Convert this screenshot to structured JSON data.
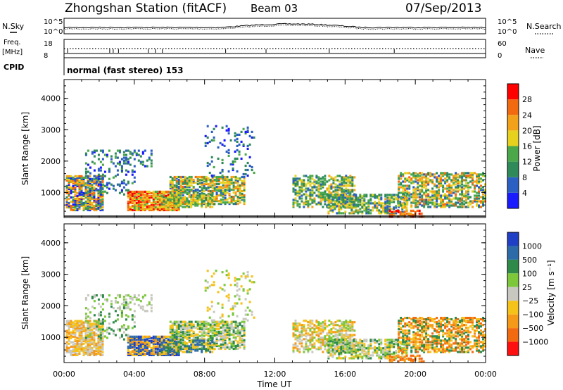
{
  "header": {
    "station": "Zhongshan Station (fitACF)",
    "beam": "Beam 03",
    "date": "07/Sep/2013"
  },
  "noise_panel": {
    "left_label": "N.Sky",
    "right_label": "N.Search",
    "left_ticks": [
      "10^5",
      "10^0"
    ],
    "right_ticks": [
      "10^5",
      "10^0"
    ]
  },
  "freq_panel": {
    "left_label_1": "Freq.",
    "left_label_2": "[MHz]",
    "right_label": "Nave",
    "left_ticks": [
      "18",
      "8"
    ],
    "right_ticks": [
      "60",
      "0"
    ]
  },
  "cpid": {
    "label": "CPID",
    "text": "normal (fast stereo) 153"
  },
  "chart_data": [
    {
      "type": "heatmap",
      "title": "Power",
      "ylabel": "Slant Range [km]",
      "xlabel": "",
      "x_ticks": [
        "00:00",
        "04:00",
        "08:00",
        "12:00",
        "16:00",
        "20:00",
        "00:00"
      ],
      "y_ticks": [
        1000,
        2000,
        3000,
        4000
      ],
      "ylim": [
        200,
        4600
      ],
      "colorbar": {
        "label": "Power [dB]",
        "ticks": [
          "4",
          "8",
          "12",
          "16",
          "20",
          "24",
          "28"
        ],
        "colors": [
          "#1a1aff",
          "#2b5fc2",
          "#2f8a5a",
          "#4aa84a",
          "#e6d21e",
          "#f2a21a",
          "#f26a10",
          "#ff0000"
        ]
      },
      "data_note": "Echo occurrence: 00:00-10:30 between 400-2400 km (strongest 04:00-06:30 near 500-900 km), scattered echoes to 3100 km at 08:00-10:30, 13:00-24:00 between 300-1600 km"
    },
    {
      "type": "heatmap",
      "title": "Velocity",
      "ylabel": "Slant Range [km]",
      "xlabel": "Time UT",
      "x_ticks": [
        "00:00",
        "04:00",
        "08:00",
        "12:00",
        "16:00",
        "20:00",
        "00:00"
      ],
      "y_ticks": [
        1000,
        2000,
        3000,
        4000
      ],
      "ylim": [
        200,
        4600
      ],
      "colorbar": {
        "label": "Velocity [m s⁻¹]",
        "ticks": [
          "1000",
          "500",
          "100",
          "25",
          "−25",
          "−100",
          "−500",
          "−1000"
        ],
        "colors": [
          "#1f3fc4",
          "#2d6aa8",
          "#2f8a4a",
          "#7cc83a",
          "#c8c8c0",
          "#f5c21a",
          "#f59a18",
          "#f26a10",
          "#ff1010"
        ]
      }
    }
  ]
}
